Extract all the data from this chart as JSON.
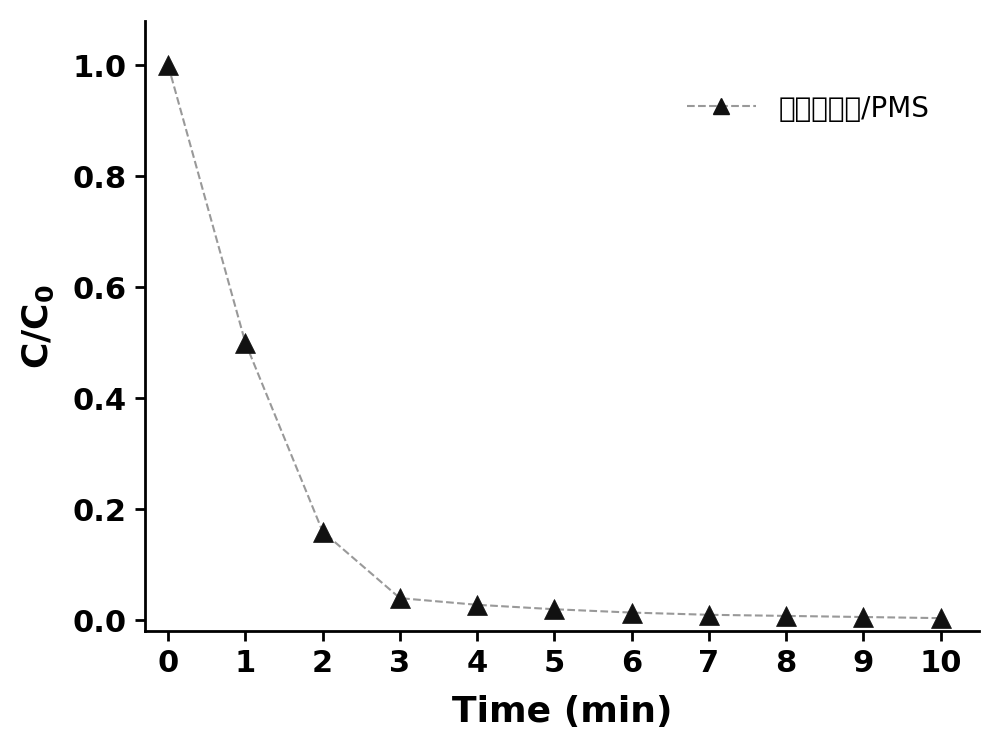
{
  "x": [
    0,
    1,
    2,
    3,
    4,
    5,
    6,
    7,
    8,
    9,
    10
  ],
  "y": [
    1.0,
    0.5,
    0.16,
    0.04,
    0.028,
    0.02,
    0.014,
    0.01,
    0.008,
    0.006,
    0.004
  ],
  "xlabel": "Time (min)",
  "line_color": "#999999",
  "marker_color": "#111111",
  "marker": "^",
  "marker_size": 14,
  "line_width": 1.5,
  "xlim": [
    -0.3,
    10.5
  ],
  "ylim": [
    -0.02,
    1.08
  ],
  "xticks": [
    0,
    1,
    2,
    3,
    4,
    5,
    6,
    7,
    8,
    9,
    10
  ],
  "yticks": [
    0.0,
    0.2,
    0.4,
    0.6,
    0.8,
    1.0
  ],
  "background_color": "#ffffff",
  "tick_fontsize": 22,
  "label_fontsize": 26,
  "legend_fontsize": 20,
  "legend_chinese": "改性碳维维/PMS"
}
